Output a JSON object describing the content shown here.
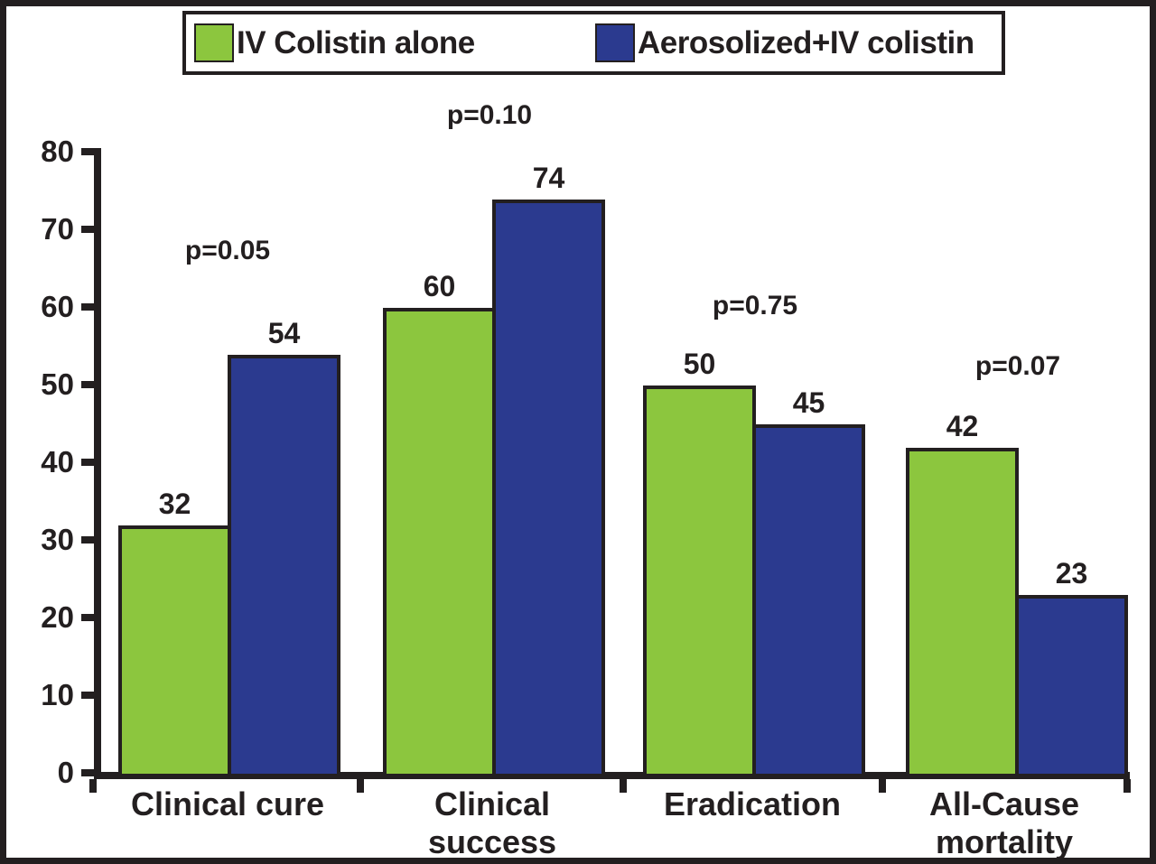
{
  "figure": {
    "background": "#ffffff",
    "frame_color": "#231f20",
    "text_color": "#231f20"
  },
  "legend": {
    "items": [
      {
        "label": "IV Colistin alone",
        "color": "#8CC63E",
        "swatch": "green-square"
      },
      {
        "label": "Aerosolized+IV colistin",
        "color": "#2B3A8F",
        "swatch": "blue-square"
      }
    ]
  },
  "chart_data": {
    "type": "bar",
    "title": "",
    "xlabel": "",
    "ylabel": "",
    "categories": [
      "Clinical cure",
      "Clinical success",
      "Eradication",
      "All-Cause mortality"
    ],
    "category_lines": [
      [
        "Clinical cure"
      ],
      [
        "Clinical",
        "success"
      ],
      [
        "Eradication"
      ],
      [
        "All-Cause",
        "mortality"
      ]
    ],
    "series": [
      {
        "name": "IV Colistin alone",
        "color": "#8CC63E",
        "values": [
          32,
          60,
          50,
          42
        ]
      },
      {
        "name": "Aerosolized+IV colistin",
        "color": "#2B3A8F",
        "values": [
          54,
          74,
          45,
          23
        ]
      }
    ],
    "annotations": [
      "p=0.05",
      "p=0.10",
      "p=0.75",
      "p=0.07"
    ],
    "bar_value_labels": [
      [
        32,
        54
      ],
      [
        60,
        74
      ],
      [
        50,
        45
      ],
      [
        42,
        23
      ]
    ],
    "ylim": [
      0,
      80
    ],
    "yticks": [
      0,
      10,
      20,
      30,
      40,
      50,
      60,
      70,
      80
    ],
    "grid": false,
    "legend_position": "top",
    "bar_edge_color": "#231f20"
  }
}
